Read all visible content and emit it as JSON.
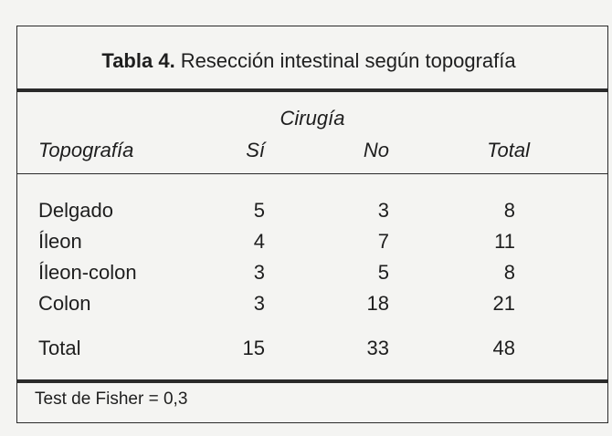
{
  "table": {
    "title_label": "Tabla 4.",
    "title_text": "Resección intestinal según topografía",
    "group_header": "Cirugía",
    "columns": [
      "Topografía",
      "Sí",
      "No",
      "Total"
    ],
    "rows": [
      {
        "label": "Delgado",
        "si": "5",
        "no": "3",
        "total": "8"
      },
      {
        "label": "Íleon",
        "si": "4",
        "no": "7",
        "total": "11"
      },
      {
        "label": "Íleon-colon",
        "si": "3",
        "no": "5",
        "total": "8"
      },
      {
        "label": "Colon",
        "si": "3",
        "no": "18",
        "total": "21"
      }
    ],
    "total_row": {
      "label": "Total",
      "si": "15",
      "no": "33",
      "total": "48"
    },
    "footnote": "Test de Fisher = 0,3"
  }
}
